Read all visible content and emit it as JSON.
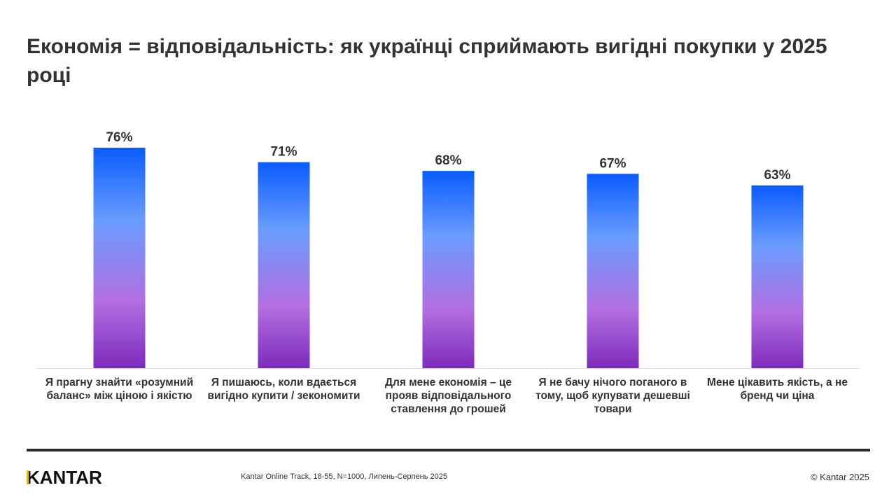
{
  "title": "Економія = відповідальність: як українці сприймають вигідні покупки у 2025 році",
  "chart_data": {
    "type": "bar",
    "categories": [
      "Я прагну знайти «розумний баланс» між ціною і якістю",
      "Я пишаюсь, коли вдається вигідно купити / зекономити",
      "Для мене економія – це прояв відповідального ставлення до грошей",
      "Я не бачу нічого поганого в тому, щоб купувати дешевші товари",
      "Мене цікавить якість, а не бренд чи ціна"
    ],
    "values": [
      76,
      71,
      68,
      67,
      63
    ],
    "data_labels": [
      "76%",
      "71%",
      "68%",
      "67%",
      "63%"
    ],
    "ylim": [
      0,
      100
    ],
    "grid": false,
    "legend": "none",
    "colors": {
      "gradient_top": "#0a5cff",
      "gradient_mid": "#6a9cff",
      "gradient_low": "#b36ee0",
      "gradient_bottom": "#7d2bbd"
    }
  },
  "footer": {
    "logo": "KANTAR",
    "source": "Kantar  Online Track, 18-55, N=1000, Липень-Серпень 2025",
    "copyright": "© Kantar 2025"
  }
}
